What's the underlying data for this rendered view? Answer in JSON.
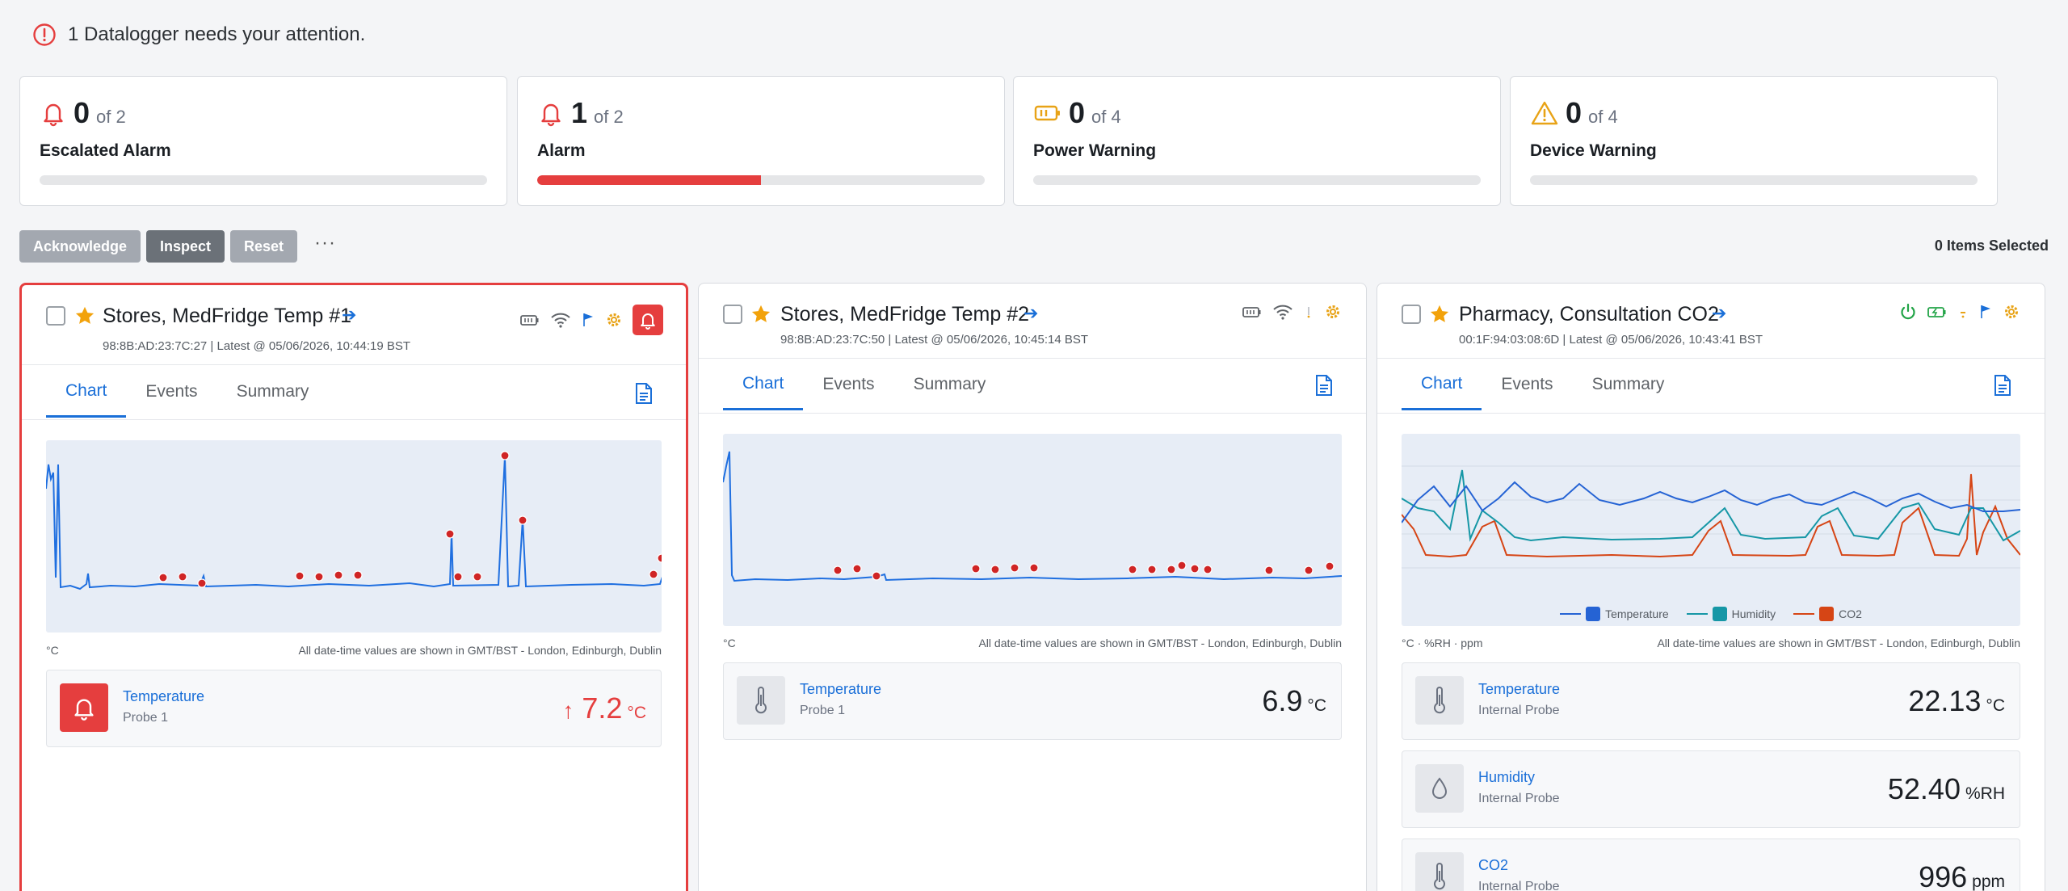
{
  "banner": {
    "text": "1 Datalogger needs your attention."
  },
  "stats": [
    {
      "count": "0",
      "of": "of 2",
      "label": "Escalated Alarm",
      "fraction": 0,
      "icon": "bell-icon",
      "color": "#e53e3e"
    },
    {
      "count": "1",
      "of": "of 2",
      "label": "Alarm",
      "fraction": 0.5,
      "icon": "bell-icon",
      "color": "#e53e3e"
    },
    {
      "count": "0",
      "of": "of 4",
      "label": "Power Warning",
      "fraction": 0,
      "icon": "battery-icon",
      "color": "#e8a317"
    },
    {
      "count": "0",
      "of": "of 4",
      "label": "Device Warning",
      "fraction": 0,
      "icon": "warning-icon",
      "color": "#e8a317"
    }
  ],
  "toolbar": {
    "acknowledge": "Acknowledge",
    "inspect": "Inspect",
    "reset": "Reset",
    "more": "···",
    "selected": "0 Items Selected"
  },
  "cards": [
    {
      "title": "Stores, MedFridge Temp #1",
      "sub": "98:8B:AD:23:7C:27 | Latest @ 05/06/2026, 10:44:19 BST",
      "status": "alarm",
      "tabs": [
        "Chart",
        "Events",
        "Summary"
      ],
      "unit_label": "°C",
      "timezone_note": "All date-time values are shown in GMT/BST - London, Edinburgh, Dublin",
      "readings": [
        {
          "name": "Temperature",
          "probe": "Probe 1",
          "value": "7.2",
          "unit": "°C",
          "trend": "↑",
          "state": "alarm",
          "icon": "bell-icon"
        }
      ]
    },
    {
      "title": "Stores, MedFridge Temp #2",
      "sub": "98:8B:AD:23:7C:50 | Latest @ 05/06/2026, 10:45:14 BST",
      "status": "ok",
      "tabs": [
        "Chart",
        "Events",
        "Summary"
      ],
      "unit_label": "°C",
      "timezone_note": "All date-time values are shown in GMT/BST - London, Edinburgh, Dublin",
      "readings": [
        {
          "name": "Temperature",
          "probe": "Probe 1",
          "value": "6.9",
          "unit": "°C",
          "state": "ok",
          "icon": "thermometer-icon"
        }
      ]
    },
    {
      "title": "Pharmacy, Consultation CO2",
      "sub": "00:1F:94:03:08:6D | Latest @ 05/06/2026, 10:43:41 BST",
      "status": "ok",
      "tabs": [
        "Chart",
        "Events",
        "Summary"
      ],
      "unit_label": "°C · %RH · ppm",
      "timezone_note": "All date-time values are shown in GMT/BST - London, Edinburgh, Dublin",
      "legend": [
        {
          "name": "Temperature",
          "color": "#2563d4"
        },
        {
          "name": "Humidity",
          "color": "#1697a6"
        },
        {
          "name": "CO2",
          "color": "#d64515"
        }
      ],
      "readings": [
        {
          "name": "Temperature",
          "probe": "Internal Probe",
          "value": "22.13",
          "unit": "°C",
          "state": "ok",
          "icon": "thermometer-icon"
        },
        {
          "name": "Humidity",
          "probe": "Internal Probe",
          "value": "52.40",
          "unit": "%RH",
          "state": "ok",
          "icon": "droplet-icon"
        },
        {
          "name": "CO2",
          "probe": "Internal Probe",
          "value": "996",
          "unit": "ppm",
          "state": "ok",
          "icon": "thermometer-icon"
        }
      ]
    }
  ],
  "colors": {
    "accent": "#1a6fd8",
    "alarm": "#e53e3e",
    "warning": "#e8a317",
    "ok_green": "#22a447",
    "chart_line": "#1f6fe0",
    "chart_bg": "#e7edf6"
  }
}
